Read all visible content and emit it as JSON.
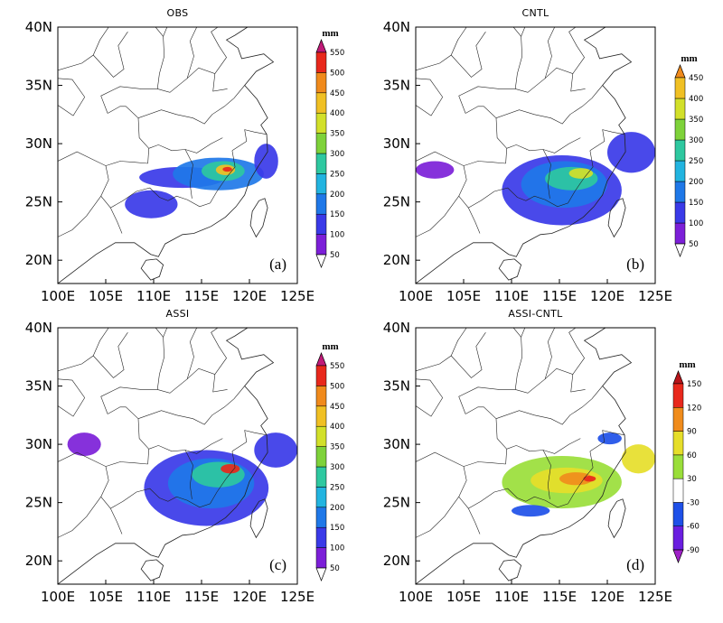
{
  "figure": {
    "panels": [
      {
        "title": "OBS",
        "label": "(a)",
        "colorbar": {
          "unit": "mm",
          "levels": [
            "50",
            "100",
            "150",
            "200",
            "250",
            "300",
            "350",
            "400",
            "450",
            "500",
            "550"
          ],
          "colors": [
            "#ffffff",
            "#7c1fd8",
            "#3a3ae8",
            "#1f78e8",
            "#22b4e0",
            "#2ec8a0",
            "#7ed23a",
            "#d2e02a",
            "#f0c024",
            "#f08a1c",
            "#e8281c",
            "#c01a78"
          ]
        },
        "rain": {
          "blobs": [
            {
              "lon": [
                108.5,
                117.5
              ],
              "lat": [
                26.2,
                28.0
              ],
              "lev": 2
            },
            {
              "lon": [
                112.0,
                121.5
              ],
              "lat": [
                26.0,
                28.8
              ],
              "lev": 3
            },
            {
              "lon": [
                107.0,
                112.5
              ],
              "lat": [
                23.6,
                26.0
              ],
              "lev": 2
            },
            {
              "lon": [
                115.0,
                119.5
              ],
              "lat": [
                26.8,
                28.5
              ],
              "lev": 5
            },
            {
              "lon": [
                116.5,
                118.5
              ],
              "lat": [
                27.3,
                28.2
              ],
              "lev": 8
            },
            {
              "lon": [
                117.2,
                118.2
              ],
              "lat": [
                27.6,
                28.0
              ],
              "lev": 10
            },
            {
              "lon": [
                120.5,
                123.0
              ],
              "lat": [
                27.0,
                30.0
              ],
              "lev": 2
            }
          ]
        }
      },
      {
        "title": "CNTL",
        "label": "(b)",
        "colorbar": {
          "unit": "mm",
          "levels": [
            "50",
            "100",
            "150",
            "200",
            "250",
            "300",
            "350",
            "400",
            "450"
          ],
          "colors": [
            "#ffffff",
            "#7c1fd8",
            "#3a3ae8",
            "#1f78e8",
            "#22b4e0",
            "#2ec8a0",
            "#7ed23a",
            "#d2e02a",
            "#f0c024",
            "#f08a1c"
          ]
        },
        "rain": {
          "blobs": [
            {
              "lon": [
                109.0,
                121.5
              ],
              "lat": [
                23.0,
                29.0
              ],
              "lev": 2
            },
            {
              "lon": [
                111.0,
                120.0
              ],
              "lat": [
                24.5,
                28.5
              ],
              "lev": 3
            },
            {
              "lon": [
                113.5,
                119.0
              ],
              "lat": [
                26.0,
                28.0
              ],
              "lev": 5
            },
            {
              "lon": [
                116.0,
                118.5
              ],
              "lat": [
                27.0,
                27.9
              ],
              "lev": 7
            },
            {
              "lon": [
                120.0,
                125.0
              ],
              "lat": [
                27.5,
                31.0
              ],
              "lev": 2
            },
            {
              "lon": [
                100.0,
                104.0
              ],
              "lat": [
                27.0,
                28.5
              ],
              "lev": 1
            }
          ]
        }
      },
      {
        "title": "ASSI",
        "label": "(c)",
        "colorbar": {
          "unit": "mm",
          "levels": [
            "50",
            "100",
            "150",
            "200",
            "250",
            "300",
            "350",
            "400",
            "450",
            "500",
            "550"
          ],
          "colors": [
            "#ffffff",
            "#7c1fd8",
            "#3a3ae8",
            "#1f78e8",
            "#22b4e0",
            "#2ec8a0",
            "#7ed23a",
            "#d2e02a",
            "#f0c024",
            "#f08a1c",
            "#e8281c",
            "#c01a78"
          ]
        },
        "rain": {
          "blobs": [
            {
              "lon": [
                109.0,
                122.0
              ],
              "lat": [
                23.0,
                29.5
              ],
              "lev": 2
            },
            {
              "lon": [
                111.5,
                120.5
              ],
              "lat": [
                24.5,
                28.8
              ],
              "lev": 3
            },
            {
              "lon": [
                114.0,
                119.5
              ],
              "lat": [
                26.3,
                28.5
              ],
              "lev": 5
            },
            {
              "lon": [
                117.0,
                119.0
              ],
              "lat": [
                27.5,
                28.3
              ],
              "lev": 10
            },
            {
              "lon": [
                120.5,
                125.0
              ],
              "lat": [
                28.0,
                31.0
              ],
              "lev": 2
            },
            {
              "lon": [
                101.0,
                104.5
              ],
              "lat": [
                29.0,
                31.0
              ],
              "lev": 1
            }
          ]
        }
      },
      {
        "title": "ASSI-CNTL",
        "label": "(d)",
        "colorbar": {
          "unit": "mm",
          "levels": [
            "-90",
            "-60",
            "-30",
            "30",
            "60",
            "90",
            "120",
            "150"
          ],
          "colors": [
            "#a020c8",
            "#6a1ee0",
            "#1e50e8",
            "#ffffff",
            "#9ade3a",
            "#e6de2a",
            "#f08c1c",
            "#e8281c",
            "#b8141a"
          ]
        },
        "rain": {
          "blobs": [
            {
              "lon": [
                109.0,
                121.5
              ],
              "lat": [
                24.5,
                29.0
              ],
              "lev": 4
            },
            {
              "lon": [
                112.0,
                119.5
              ],
              "lat": [
                25.8,
                28.0
              ],
              "lev": 5
            },
            {
              "lon": [
                115.0,
                118.5
              ],
              "lat": [
                26.5,
                27.6
              ],
              "lev": 6
            },
            {
              "lon": [
                117.5,
                118.8
              ],
              "lat": [
                26.8,
                27.3
              ],
              "lev": 7
            },
            {
              "lon": [
                121.5,
                125.0
              ],
              "lat": [
                27.5,
                30.0
              ],
              "lev": 5
            },
            {
              "lon": [
                110.0,
                114.0
              ],
              "lat": [
                23.8,
                24.8
              ],
              "lev": 2
            },
            {
              "lon": [
                119.0,
                121.5
              ],
              "lat": [
                30.0,
                31.0
              ],
              "lev": 2
            }
          ]
        }
      }
    ],
    "lon_ticks": [
      "100E",
      "105E",
      "110E",
      "115E",
      "120E",
      "125E"
    ],
    "lat_ticks": [
      "20N",
      "25N",
      "30N",
      "35N",
      "40N"
    ],
    "extent": {
      "lon": [
        100,
        125
      ],
      "lat": [
        18,
        40
      ]
    }
  }
}
